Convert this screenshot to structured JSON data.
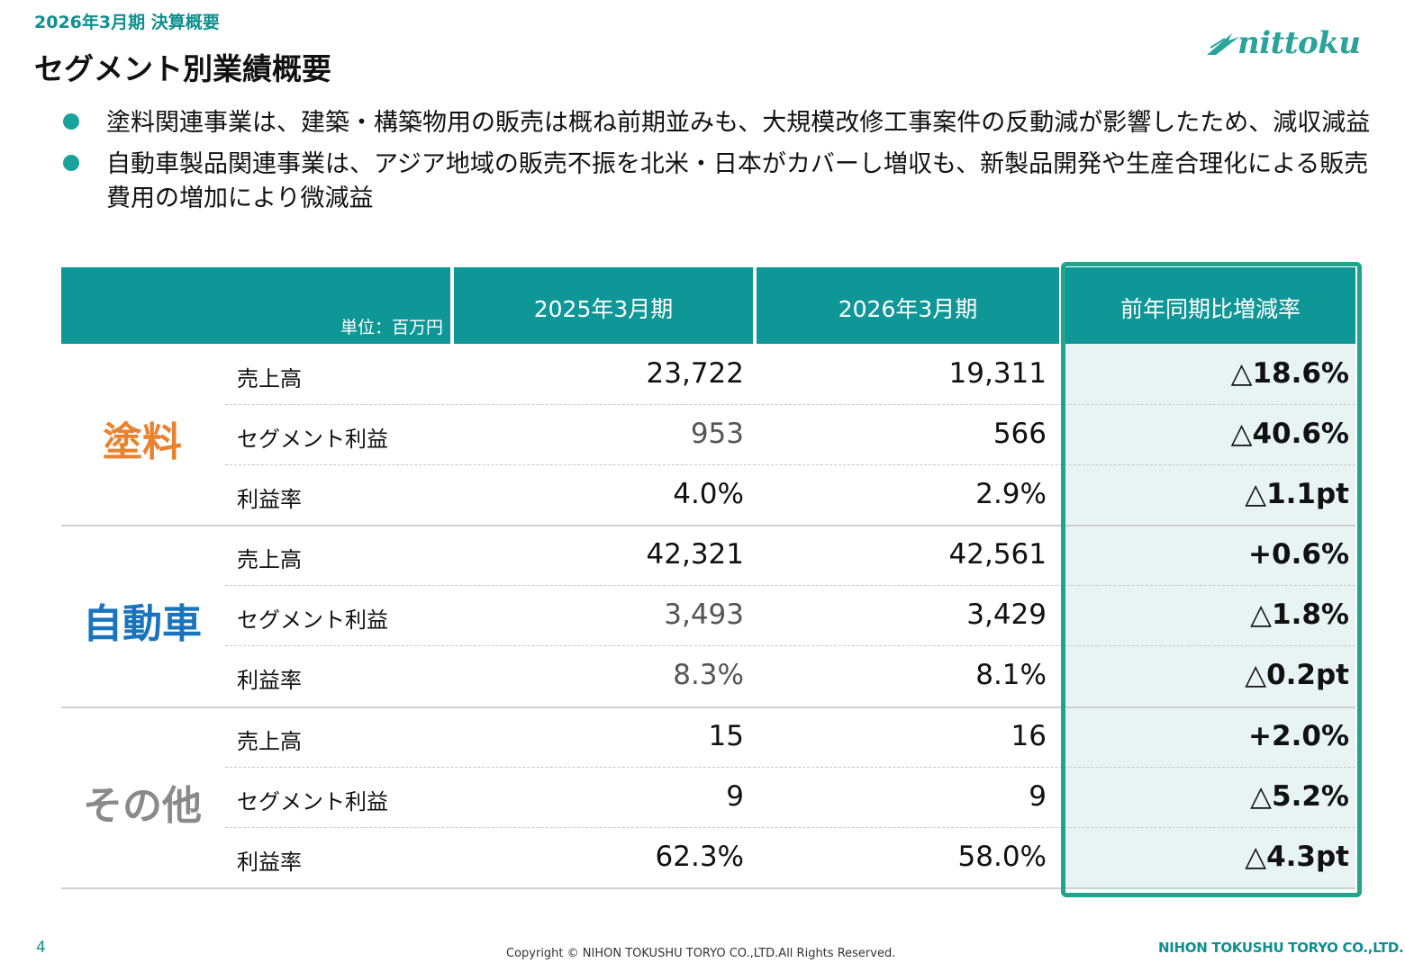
{
  "header": {
    "subtitle": "2026年3月期 決算概要",
    "title": "セグメント別業績概要",
    "logo_text": "nittoku"
  },
  "bullets": [
    "塗料関連事業は、建築・構築物用の販売は概ね前期並みも、大規模改修工事案件の反動減が影響したため、減収減益",
    "自動車製品関連事業は、アジア地域の販売不振を北米・日本がカバーし増収も、新製品開発や生産合理化による販売費用の増加により微減益"
  ],
  "table": {
    "unit": "単位：百万円",
    "col_fy2025": "2025年3月期",
    "col_fy2026": "2026年3月期",
    "col_change": "前年同期比増減率",
    "segments": [
      {
        "name": "塗料",
        "color": "#e8822e",
        "rows": [
          {
            "label": "売上高",
            "fy2025": "23,722",
            "fy2026": "19,311",
            "change": "△18.6%"
          },
          {
            "label": "セグメント利益",
            "fy2025": "953",
            "fy2026": "566",
            "change": "△40.6%"
          },
          {
            "label": "利益率",
            "fy2025": "4.0%",
            "fy2026": "2.9%",
            "change": "△1.1pt"
          }
        ]
      },
      {
        "name": "自動車",
        "color": "#1a74bd",
        "rows": [
          {
            "label": "売上高",
            "fy2025": "42,321",
            "fy2026": "42,561",
            "change": "+0.6%"
          },
          {
            "label": "セグメント利益",
            "fy2025": "3,493",
            "fy2026": "3,429",
            "change": "△1.8%"
          },
          {
            "label": "利益率",
            "fy2025": "8.3%",
            "fy2026": "8.1%",
            "change": "△0.2pt"
          }
        ]
      },
      {
        "name": "その他",
        "color": "#8a8a8a",
        "rows": [
          {
            "label": "売上高",
            "fy2025": "15",
            "fy2026": "16",
            "change": "+2.0%"
          },
          {
            "label": "セグメント利益",
            "fy2025": "9",
            "fy2026": "9",
            "change": "△5.2%"
          },
          {
            "label": "利益率",
            "fy2025": "62.3%",
            "fy2026": "58.0%",
            "change": "△4.3pt"
          }
        ]
      }
    ]
  },
  "footer": {
    "page_number": "4",
    "copyright": "Copyright © NIHON TOKUSHU TORYO CO.,LTD.All Rights Reserved.",
    "company": "NIHON TOKUSHU TORYO CO.,LTD."
  }
}
